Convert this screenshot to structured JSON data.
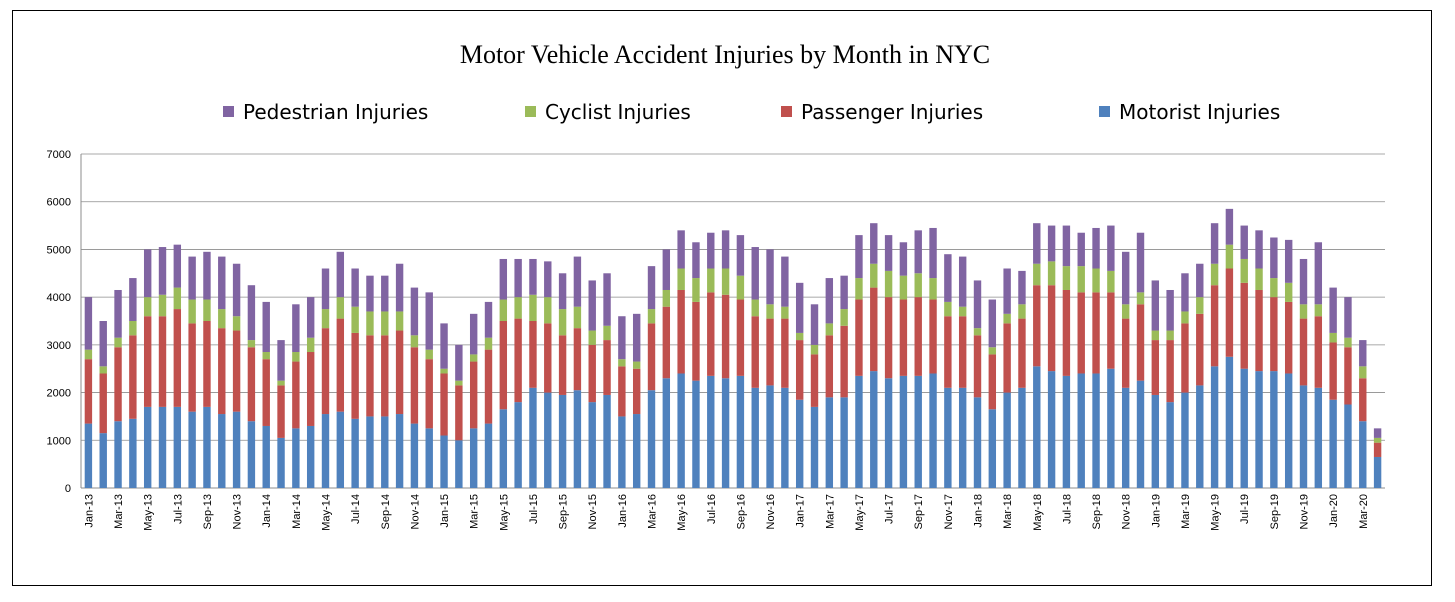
{
  "chart_data": {
    "type": "bar",
    "stacked": true,
    "title": "Motor Vehicle Accident Injuries by Month in NYC",
    "xlabel": "",
    "ylabel": "",
    "ylim": [
      0,
      7000
    ],
    "yticks": [
      0,
      1000,
      2000,
      3000,
      4000,
      5000,
      6000,
      7000
    ],
    "grid": true,
    "legend_position": "top",
    "legend_order": [
      "Pedestrian Injuries",
      "Cyclist Injuries",
      "Passenger Injuries",
      "Motorist Injuries"
    ],
    "categories": [
      "Jan-13",
      "Feb-13",
      "Mar-13",
      "Apr-13",
      "May-13",
      "Jun-13",
      "Jul-13",
      "Aug-13",
      "Sep-13",
      "Oct-13",
      "Nov-13",
      "Dec-13",
      "Jan-14",
      "Feb-14",
      "Mar-14",
      "Apr-14",
      "May-14",
      "Jun-14",
      "Jul-14",
      "Aug-14",
      "Sep-14",
      "Oct-14",
      "Nov-14",
      "Dec-14",
      "Jan-15",
      "Feb-15",
      "Mar-15",
      "Apr-15",
      "May-15",
      "Jun-15",
      "Jul-15",
      "Aug-15",
      "Sep-15",
      "Oct-15",
      "Nov-15",
      "Dec-15",
      "Jan-16",
      "Feb-16",
      "Mar-16",
      "Apr-16",
      "May-16",
      "Jun-16",
      "Jul-16",
      "Aug-16",
      "Sep-16",
      "Oct-16",
      "Nov-16",
      "Dec-16",
      "Jan-17",
      "Feb-17",
      "Mar-17",
      "Apr-17",
      "May-17",
      "Jun-17",
      "Jul-17",
      "Aug-17",
      "Sep-17",
      "Oct-17",
      "Nov-17",
      "Dec-17",
      "Jan-18",
      "Feb-18",
      "Mar-18",
      "Apr-18",
      "May-18",
      "Jun-18",
      "Jul-18",
      "Aug-18",
      "Sep-18",
      "Oct-18",
      "Nov-18",
      "Dec-18",
      "Jan-19",
      "Feb-19",
      "Mar-19",
      "Apr-19",
      "May-19",
      "Jun-19",
      "Jul-19",
      "Aug-19",
      "Sep-19",
      "Oct-19",
      "Nov-19",
      "Dec-19",
      "Jan-20",
      "Feb-20",
      "Mar-20",
      "Apr-20"
    ],
    "tick_labels_shown_every": 2,
    "series": [
      {
        "name": "Motorist Injuries",
        "color": "#4f81bd",
        "values": [
          1350,
          1150,
          1400,
          1450,
          1700,
          1700,
          1700,
          1600,
          1700,
          1550,
          1600,
          1400,
          1300,
          1050,
          1250,
          1300,
          1550,
          1600,
          1450,
          1500,
          1500,
          1550,
          1350,
          1250,
          1100,
          1000,
          1250,
          1350,
          1650,
          1800,
          2100,
          2000,
          1950,
          2050,
          1800,
          1950,
          1500,
          1550,
          2050,
          2300,
          2400,
          2250,
          2350,
          2300,
          2350,
          2100,
          2150,
          2100,
          1850,
          1700,
          1900,
          1900,
          2350,
          2450,
          2300,
          2350,
          2350,
          2400,
          2100,
          2100,
          1900,
          1650,
          2000,
          2100,
          2550,
          2450,
          2350,
          2400,
          2400,
          2500,
          2100,
          2250,
          1950,
          1800,
          2000,
          2150,
          2550,
          2750,
          2500,
          2450,
          2450,
          2400,
          2150,
          2100,
          1850,
          1750,
          1400,
          650
        ]
      },
      {
        "name": "Passenger Injuries",
        "color": "#c0504d",
        "values": [
          1350,
          1250,
          1550,
          1750,
          1900,
          1900,
          2050,
          1850,
          1800,
          1800,
          1700,
          1550,
          1400,
          1100,
          1400,
          1550,
          1800,
          1950,
          1800,
          1700,
          1700,
          1750,
          1600,
          1450,
          1300,
          1150,
          1400,
          1550,
          1850,
          1750,
          1400,
          1450,
          1250,
          1300,
          1200,
          1150,
          1050,
          950,
          1400,
          1500,
          1750,
          1650,
          1750,
          1750,
          1600,
          1500,
          1400,
          1450,
          1250,
          1100,
          1300,
          1500,
          1600,
          1750,
          1700,
          1600,
          1650,
          1550,
          1500,
          1500,
          1300,
          1150,
          1450,
          1450,
          1700,
          1800,
          1800,
          1700,
          1700,
          1600,
          1450,
          1600,
          1150,
          1300,
          1450,
          1500,
          1700,
          1850,
          1800,
          1700,
          1550,
          1500,
          1400,
          1500,
          1200,
          1200,
          900,
          300
        ]
      },
      {
        "name": "Cyclist Injuries",
        "color": "#9bbb59",
        "values": [
          200,
          150,
          200,
          300,
          400,
          450,
          450,
          500,
          450,
          400,
          300,
          150,
          150,
          100,
          200,
          300,
          400,
          450,
          550,
          500,
          500,
          400,
          250,
          200,
          100,
          100,
          150,
          250,
          450,
          450,
          550,
          550,
          550,
          450,
          300,
          300,
          150,
          150,
          300,
          350,
          450,
          500,
          500,
          550,
          500,
          350,
          300,
          250,
          150,
          200,
          250,
          350,
          450,
          500,
          550,
          500,
          500,
          450,
          300,
          200,
          150,
          150,
          200,
          300,
          450,
          500,
          500,
          550,
          500,
          450,
          300,
          250,
          200,
          200,
          250,
          350,
          450,
          500,
          500,
          450,
          400,
          400,
          300,
          250,
          200,
          200,
          250,
          100
        ]
      },
      {
        "name": "Pedestrian Injuries",
        "color": "#8064a2",
        "values": [
          1100,
          950,
          1000,
          900,
          1000,
          1000,
          900,
          900,
          1000,
          1100,
          1100,
          1150,
          1050,
          850,
          1000,
          850,
          850,
          950,
          800,
          750,
          750,
          1000,
          1000,
          1200,
          950,
          750,
          850,
          750,
          850,
          800,
          750,
          750,
          750,
          1050,
          1050,
          1100,
          900,
          1000,
          900,
          850,
          800,
          750,
          750,
          800,
          850,
          1100,
          1150,
          1050,
          1050,
          850,
          950,
          700,
          900,
          850,
          750,
          700,
          900,
          1050,
          1000,
          1050,
          1000,
          1000,
          950,
          700,
          850,
          750,
          850,
          700,
          850,
          950,
          1100,
          1250,
          1050,
          850,
          800,
          700,
          850,
          750,
          700,
          800,
          850,
          900,
          950,
          1300,
          950,
          850,
          550,
          200
        ]
      }
    ]
  }
}
